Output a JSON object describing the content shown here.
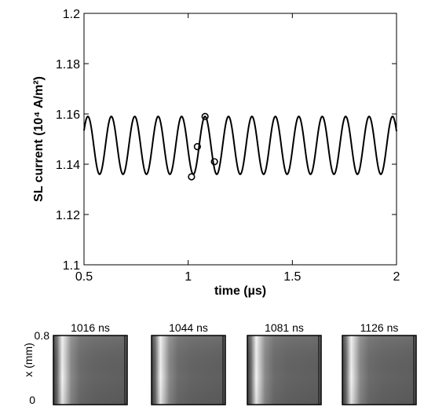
{
  "chart_data": {
    "type": "line",
    "xlabel": "time (µs)",
    "ylabel": "SL current (10⁴ A/m²)",
    "xlim": [
      0.5,
      2
    ],
    "ylim": [
      1.1,
      1.2
    ],
    "x_ticks": [
      "0.5",
      "1",
      "1.5",
      "2"
    ],
    "y_ticks": [
      "1.1",
      "1.12",
      "1.14",
      "1.16",
      "1.18",
      "1.2"
    ],
    "grid": false,
    "series": [
      {
        "waveform": "periodic oscillation",
        "period_us": 0.1125,
        "y_min": 1.136,
        "y_max": 1.159,
        "sample_x": [
          0.5,
          0.542,
          0.6,
          0.654,
          0.712,
          0.767,
          0.825,
          0.879,
          0.937,
          0.992,
          1.05,
          1.104,
          1.162,
          1.217,
          1.275,
          1.329,
          1.387,
          1.442,
          1.5,
          1.554,
          1.612,
          1.667,
          1.725,
          1.779,
          1.837,
          1.892,
          1.95,
          2.0
        ],
        "sample_y": [
          1.15,
          1.136,
          1.159,
          1.136,
          1.159,
          1.136,
          1.159,
          1.136,
          1.159,
          1.136,
          1.159,
          1.136,
          1.159,
          1.136,
          1.159,
          1.136,
          1.159,
          1.136,
          1.159,
          1.136,
          1.159,
          1.136,
          1.159,
          1.136,
          1.159,
          1.136,
          1.159,
          1.151
        ]
      }
    ],
    "markers": [
      {
        "x": 1.016,
        "y": 1.135
      },
      {
        "x": 1.044,
        "y": 1.147
      },
      {
        "x": 1.081,
        "y": 1.159
      },
      {
        "x": 1.126,
        "y": 1.141
      }
    ]
  },
  "snapshots": {
    "ylabel": "x (mm)",
    "y_ticks": [
      "0.8",
      "0"
    ],
    "panels": [
      {
        "label": "1016 ns"
      },
      {
        "label": "1044 ns"
      },
      {
        "label": "1081 ns"
      },
      {
        "label": "1126 ns"
      }
    ]
  }
}
